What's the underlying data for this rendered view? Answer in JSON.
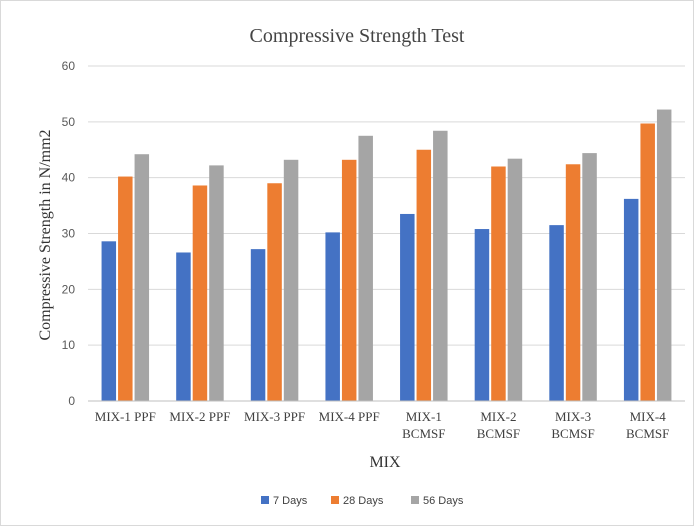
{
  "chart_data": {
    "type": "bar",
    "title": "Compressive Strength Test",
    "xlabel": "MIX",
    "ylabel": "Compressive Strength in N/mm2",
    "ylim": [
      0,
      60
    ],
    "yticks": [
      0,
      10,
      20,
      30,
      40,
      50,
      60
    ],
    "grid": true,
    "legend_position": "bottom",
    "categories": [
      [
        "MIX-1 PPF"
      ],
      [
        "MIX-2 PPF"
      ],
      [
        "MIX-3 PPF"
      ],
      [
        "MIX-4 PPF"
      ],
      [
        "MIX-1",
        "BCMSF"
      ],
      [
        "MIX-2",
        "BCMSF"
      ],
      [
        "MIX-3",
        "BCMSF"
      ],
      [
        "MIX-4",
        "BCMSF"
      ]
    ],
    "series": [
      {
        "name": "7 Days",
        "color": "#4472c4",
        "values": [
          28.6,
          26.6,
          27.2,
          30.2,
          33.5,
          30.8,
          31.5,
          36.2
        ]
      },
      {
        "name": "28 Days",
        "color": "#ed7d31",
        "values": [
          40.2,
          38.6,
          39.0,
          43.2,
          45.0,
          42.0,
          42.4,
          49.7
        ]
      },
      {
        "name": "56 Days",
        "color": "#a5a5a5",
        "values": [
          44.2,
          42.2,
          43.2,
          47.5,
          48.4,
          43.4,
          44.4,
          52.2
        ]
      }
    ]
  }
}
